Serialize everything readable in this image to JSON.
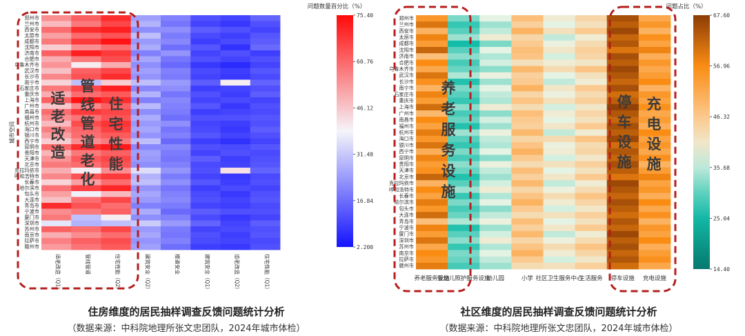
{
  "captions": {
    "left": {
      "title": "住房维度的居民抽样调查反馈问题统计分析",
      "source": "（数据来源：中科院地理所张文忠团队，2024年城市体检）"
    },
    "right": {
      "title": "社区维度的居民抽样调查反馈问题统计分析",
      "source": "（数据来源：中科院地理所张文忠团队，2024年城市体检）"
    }
  },
  "chart_data": [
    {
      "type": "heatmap",
      "title": "",
      "ylabel": "城市空间",
      "colorbar_label": "问题数量百分比（%）",
      "colorscale": "bwr",
      "colorbar_ticks": [
        75.4,
        60.76,
        46.12,
        31.48,
        16.84,
        2.2
      ],
      "range": [
        2.2,
        75.4
      ],
      "x": [
        "适老改造（Q1）",
        "管线管道",
        "住宅性能（Q2）",
        "建筑安全（Q2）",
        "楼道安全",
        "建筑安全（Q1）",
        "适老改造（Q2）",
        "住宅性能（Q1）"
      ],
      "y": [
        "郑州市",
        "兰州市",
        "西安市",
        "太原市",
        "成都市",
        "沈阳市",
        "济南市",
        "合肥市",
        "乌鲁木齐市",
        "武汉市",
        "长沙市",
        "南宁市",
        "石家庄市",
        "重庆市",
        "上海市",
        "广州市",
        "南昌市",
        "福州市",
        "杭州市",
        "海口市",
        "银川市",
        "西宁市",
        "昆明市",
        "贵阳市",
        "天津市",
        "北京市",
        "克拉玛依市",
        "呼和浩特市",
        "长春市",
        "哈尔滨市",
        "包头市",
        "大连市",
        "青岛市",
        "宁波市",
        "厦门市",
        "深圳市",
        "苏州市",
        "南京市",
        "拉萨市",
        "赣州市"
      ],
      "annotations": [
        "适老改造",
        "管线管道老化",
        "住宅性能"
      ],
      "values": [
        [
          55,
          62,
          70,
          25,
          20,
          12,
          10,
          15
        ],
        [
          48,
          58,
          66,
          28,
          18,
          10,
          8,
          12
        ],
        [
          60,
          70,
          72,
          22,
          22,
          14,
          12,
          10
        ],
        [
          52,
          60,
          64,
          30,
          19,
          11,
          9,
          13
        ],
        [
          58,
          68,
          74,
          24,
          21,
          9,
          11,
          14
        ],
        [
          45,
          55,
          60,
          27,
          17,
          13,
          7,
          16
        ],
        [
          62,
          72,
          68,
          20,
          23,
          10,
          12,
          9
        ],
        [
          50,
          58,
          65,
          26,
          18,
          12,
          10,
          12
        ],
        [
          54,
          40,
          50,
          22,
          16,
          8,
          6,
          10
        ],
        [
          47,
          62,
          66,
          25,
          20,
          11,
          9,
          13
        ],
        [
          56,
          64,
          70,
          23,
          19,
          10,
          8,
          11
        ],
        [
          44,
          30,
          45,
          30,
          24,
          14,
          40,
          15
        ],
        [
          58,
          66,
          72,
          21,
          22,
          9,
          10,
          12
        ],
        [
          50,
          60,
          63,
          28,
          18,
          12,
          9,
          14
        ],
        [
          62,
          74,
          70,
          20,
          21,
          10,
          11,
          10
        ],
        [
          46,
          56,
          62,
          29,
          20,
          13,
          8,
          12
        ],
        [
          60,
          68,
          66,
          22,
          19,
          9,
          10,
          11
        ],
        [
          55,
          59,
          64,
          27,
          17,
          12,
          12,
          13
        ],
        [
          48,
          65,
          69,
          24,
          22,
          10,
          9,
          12
        ],
        [
          57,
          61,
          67,
          26,
          18,
          11,
          8,
          14
        ],
        [
          52,
          60,
          63,
          23,
          20,
          13,
          10,
          12
        ],
        [
          45,
          55,
          58,
          30,
          16,
          9,
          7,
          10
        ],
        [
          61,
          70,
          73,
          21,
          21,
          12,
          11,
          13
        ],
        [
          49,
          58,
          62,
          25,
          19,
          10,
          12,
          11
        ],
        [
          54,
          63,
          66,
          24,
          18,
          14,
          9,
          12
        ],
        [
          58,
          60,
          64,
          22,
          20,
          11,
          10,
          13
        ],
        [
          50,
          40,
          55,
          35,
          23,
          12,
          42,
          15
        ],
        [
          56,
          64,
          68,
          28,
          19,
          10,
          8,
          11
        ],
        [
          44,
          52,
          60,
          30,
          22,
          13,
          9,
          12
        ],
        [
          59,
          67,
          71,
          23,
          18,
          9,
          11,
          10
        ],
        [
          52,
          38,
          48,
          26,
          20,
          11,
          8,
          12
        ],
        [
          47,
          60,
          66,
          24,
          21,
          12,
          10,
          13
        ],
        [
          70,
          64,
          60,
          20,
          19,
          10,
          9,
          11
        ],
        [
          55,
          58,
          62,
          27,
          16,
          14,
          12,
          12
        ],
        [
          58,
          30,
          40,
          22,
          20,
          11,
          8,
          10
        ],
        [
          36,
          28,
          30,
          32,
          24,
          15,
          10,
          14
        ],
        [
          62,
          60,
          66,
          24,
          19,
          10,
          11,
          12
        ],
        [
          50,
          55,
          60,
          26,
          18,
          12,
          9,
          13
        ],
        [
          57,
          62,
          65,
          23,
          20,
          11,
          10,
          11
        ],
        [
          53,
          59,
          63,
          25,
          17,
          9,
          8,
          12
        ]
      ]
    },
    {
      "type": "heatmap",
      "title": "",
      "colorbar_label": "问题占比（%）",
      "colorscale": "teal-orange",
      "colorbar_ticks": [
        67.6,
        56.96,
        46.32,
        35.68,
        25.04,
        14.4
      ],
      "range": [
        14.4,
        67.6
      ],
      "x": [
        "养老服务设施",
        "婴幼儿照护服务设施",
        "幼儿园",
        "小学",
        "社区卫生服务中心",
        "生活服务",
        "停车设施",
        "充电设施"
      ],
      "y": [
        "郑州市",
        "兰州市",
        "西安市",
        "太原市",
        "成都市",
        "沈阳市",
        "济南市",
        "合肥市",
        "乌鲁木齐市",
        "武汉市",
        "长沙市",
        "南宁市",
        "石家庄市",
        "重庆市",
        "上海市",
        "广州市",
        "南昌市",
        "福州市",
        "杭州市",
        "海口市",
        "银川市",
        "西宁市",
        "昆明市",
        "贵阳市",
        "天津市",
        "北京市",
        "克拉玛依市",
        "呼和浩特市",
        "长春市",
        "哈尔滨市",
        "包头市",
        "大连市",
        "青岛市",
        "宁波市",
        "厦门市",
        "深圳市",
        "苏州市",
        "南京市",
        "拉萨市",
        "赣州市"
      ],
      "annotations": [
        "养老服务设施",
        "停车设施",
        "充电设施"
      ],
      "values": [
        [
          55,
          32,
          38,
          48,
          40,
          44,
          65,
          52
        ],
        [
          60,
          28,
          34,
          45,
          38,
          42,
          63,
          55
        ],
        [
          50,
          30,
          36,
          50,
          42,
          46,
          66,
          50
        ],
        [
          58,
          34,
          40,
          44,
          36,
          40,
          62,
          56
        ],
        [
          54,
          26,
          32,
          46,
          39,
          43,
          64,
          53
        ],
        [
          62,
          30,
          38,
          48,
          41,
          45,
          60,
          58
        ],
        [
          48,
          33,
          35,
          47,
          37,
          44,
          65,
          51
        ],
        [
          57,
          29,
          37,
          42,
          40,
          41,
          63,
          55
        ],
        [
          52,
          31,
          33,
          49,
          43,
          47,
          66,
          52
        ],
        [
          60,
          35,
          39,
          45,
          38,
          42,
          64,
          54
        ],
        [
          56,
          27,
          34,
          46,
          36,
          40,
          62,
          57
        ],
        [
          50,
          32,
          38,
          50,
          41,
          46,
          65,
          50
        ],
        [
          58,
          30,
          36,
          44,
          39,
          43,
          61,
          55
        ],
        [
          54,
          28,
          35,
          47,
          42,
          45,
          63,
          53
        ],
        [
          61,
          33,
          40,
          43,
          37,
          41,
          67,
          56
        ],
        [
          49,
          29,
          33,
          48,
          40,
          44,
          64,
          52
        ],
        [
          57,
          31,
          37,
          46,
          38,
          42,
          62,
          54
        ],
        [
          53,
          27,
          34,
          45,
          41,
          46,
          65,
          51
        ],
        [
          59,
          34,
          39,
          49,
          36,
          40,
          63,
          57
        ],
        [
          55,
          30,
          36,
          44,
          43,
          47,
          66,
          53
        ],
        [
          60,
          28,
          35,
          47,
          39,
          43,
          61,
          55
        ],
        [
          51,
          32,
          38,
          50,
          40,
          44,
          64,
          52
        ],
        [
          58,
          29,
          33,
          46,
          37,
          41,
          62,
          56
        ],
        [
          54,
          33,
          39,
          43,
          42,
          45,
          65,
          50
        ],
        [
          56,
          31,
          36,
          48,
          38,
          42,
          63,
          54
        ],
        [
          62,
          27,
          34,
          45,
          41,
          46,
          60,
          58
        ],
        [
          50,
          30,
          37,
          49,
          36,
          40,
          66,
          53
        ],
        [
          57,
          34,
          40,
          44,
          39,
          43,
          64,
          55
        ],
        [
          53,
          28,
          35,
          47,
          43,
          47,
          62,
          51
        ],
        [
          59,
          32,
          38,
          50,
          40,
          44,
          65,
          57
        ],
        [
          55,
          29,
          33,
          46,
          37,
          41,
          63,
          52
        ],
        [
          61,
          31,
          36,
          43,
          42,
          45,
          61,
          56
        ],
        [
          48,
          35,
          39,
          48,
          38,
          42,
          64,
          50
        ],
        [
          58,
          27,
          34,
          45,
          41,
          46,
          62,
          55
        ],
        [
          54,
          30,
          37,
          49,
          36,
          40,
          66,
          53
        ],
        [
          60,
          33,
          40,
          44,
          39,
          43,
          63,
          57
        ],
        [
          52,
          28,
          35,
          47,
          43,
          47,
          65,
          51
        ],
        [
          57,
          32,
          38,
          50,
          40,
          44,
          62,
          54
        ],
        [
          55,
          31,
          36,
          46,
          37,
          41,
          64,
          56
        ],
        [
          59,
          29,
          34,
          43,
          42,
          45,
          61,
          52
        ]
      ]
    }
  ]
}
